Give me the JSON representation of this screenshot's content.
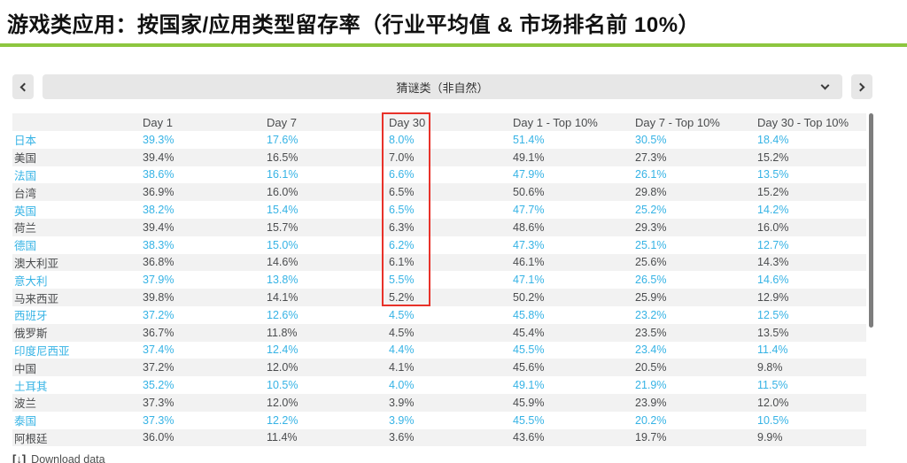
{
  "title": "游戏类应用：按国家/应用类型留存率（行业平均值 & 市场排名前 10%）",
  "selector": {
    "value": "猜谜类（非自然）",
    "prev_icon": "chevron-left",
    "next_icon": "chevron-right",
    "expand_icon": "chevron-down"
  },
  "table": {
    "columns": [
      "",
      "Day 1",
      "Day 7",
      "Day 30",
      "Day 1 - Top 10%",
      "Day 7 - Top 10%",
      "Day 30 - Top 10%"
    ],
    "rows": [
      {
        "country": "日本",
        "highlight": true,
        "values": [
          "39.3%",
          "17.6%",
          "8.0%",
          "51.4%",
          "30.5%",
          "18.4%"
        ]
      },
      {
        "country": "美国",
        "highlight": false,
        "values": [
          "39.4%",
          "16.5%",
          "7.0%",
          "49.1%",
          "27.3%",
          "15.2%"
        ]
      },
      {
        "country": "法国",
        "highlight": true,
        "values": [
          "38.6%",
          "16.1%",
          "6.6%",
          "47.9%",
          "26.1%",
          "13.5%"
        ]
      },
      {
        "country": "台湾",
        "highlight": false,
        "values": [
          "36.9%",
          "16.0%",
          "6.5%",
          "50.6%",
          "29.8%",
          "15.2%"
        ]
      },
      {
        "country": "英国",
        "highlight": true,
        "values": [
          "38.2%",
          "15.4%",
          "6.5%",
          "47.7%",
          "25.2%",
          "14.2%"
        ]
      },
      {
        "country": "荷兰",
        "highlight": false,
        "values": [
          "39.4%",
          "15.7%",
          "6.3%",
          "48.6%",
          "29.3%",
          "16.0%"
        ]
      },
      {
        "country": "德国",
        "highlight": true,
        "values": [
          "38.3%",
          "15.0%",
          "6.2%",
          "47.3%",
          "25.1%",
          "12.7%"
        ]
      },
      {
        "country": "澳大利亚",
        "highlight": false,
        "values": [
          "36.8%",
          "14.6%",
          "6.1%",
          "46.1%",
          "25.6%",
          "14.3%"
        ]
      },
      {
        "country": "意大利",
        "highlight": true,
        "values": [
          "37.9%",
          "13.8%",
          "5.5%",
          "47.1%",
          "26.5%",
          "14.6%"
        ]
      },
      {
        "country": "马来西亚",
        "highlight": false,
        "values": [
          "39.8%",
          "14.1%",
          "5.2%",
          "50.2%",
          "25.9%",
          "12.9%"
        ]
      },
      {
        "country": "西班牙",
        "highlight": true,
        "values": [
          "37.2%",
          "12.6%",
          "4.5%",
          "45.8%",
          "23.2%",
          "12.5%"
        ]
      },
      {
        "country": "俄罗斯",
        "highlight": false,
        "values": [
          "36.7%",
          "11.8%",
          "4.5%",
          "45.4%",
          "23.5%",
          "13.5%"
        ]
      },
      {
        "country": "印度尼西亚",
        "highlight": true,
        "values": [
          "37.4%",
          "12.4%",
          "4.4%",
          "45.5%",
          "23.4%",
          "11.4%"
        ]
      },
      {
        "country": "中国",
        "highlight": false,
        "values": [
          "37.2%",
          "12.0%",
          "4.1%",
          "45.6%",
          "20.5%",
          "9.8%"
        ]
      },
      {
        "country": "土耳其",
        "highlight": true,
        "values": [
          "35.2%",
          "10.5%",
          "4.0%",
          "49.1%",
          "21.9%",
          "11.5%"
        ]
      },
      {
        "country": "波兰",
        "highlight": false,
        "values": [
          "37.3%",
          "12.0%",
          "3.9%",
          "45.9%",
          "23.9%",
          "12.0%"
        ]
      },
      {
        "country": "泰国",
        "highlight": true,
        "values": [
          "37.3%",
          "12.2%",
          "3.9%",
          "45.5%",
          "20.2%",
          "10.5%"
        ]
      },
      {
        "country": "阿根廷",
        "highlight": false,
        "values": [
          "36.0%",
          "11.4%",
          "3.6%",
          "43.6%",
          "19.7%",
          "9.9%"
        ]
      }
    ]
  },
  "annotation": {
    "label": "day30-column-red-box",
    "color": "#e8322a"
  },
  "clipped_row_hint": "..",
  "footer": {
    "download_icon": "[↓]",
    "download_label": "Download data"
  },
  "colors": {
    "accent_green": "#8dc63f",
    "highlight_cyan": "#36b3e5",
    "text_dark": "#4a4c4e",
    "row_stripe": "#f2f2f2",
    "control_gray": "#e7e7e7"
  }
}
